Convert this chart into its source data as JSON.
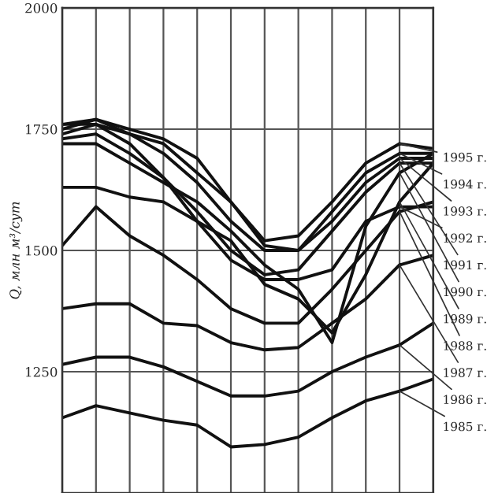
{
  "chart_data": {
    "type": "line",
    "ylabel": "Q, млн м³/сут",
    "categories": [
      null,
      null,
      null,
      null,
      null,
      null,
      null,
      null,
      null,
      null,
      null,
      null
    ],
    "ylim": [
      1000,
      2000
    ],
    "yticks": [
      1250,
      1500,
      1750,
      2000
    ],
    "grid": true,
    "tick_labels": "y",
    "marker": "none",
    "line_style": "solid",
    "series": [
      {
        "name": "1995 г.",
        "color": "#111111",
        "values": [
          1750,
          1770,
          1750,
          1730,
          1690,
          1600,
          1520,
          1530,
          1600,
          1680,
          1720,
          1710
        ]
      },
      {
        "name": "1994 г.",
        "color": "#111111",
        "values": [
          1760,
          1760,
          1740,
          1720,
          1660,
          1600,
          1510,
          1500,
          1580,
          1660,
          1700,
          1700
        ]
      },
      {
        "name": "1993 г.",
        "color": "#111111",
        "values": [
          1760,
          1770,
          1740,
          1700,
          1640,
          1560,
          1500,
          1500,
          1560,
          1640,
          1690,
          1690
        ]
      },
      {
        "name": "1992 г.",
        "color": "#111111",
        "values": [
          1740,
          1760,
          1720,
          1650,
          1560,
          1480,
          1440,
          1440,
          1460,
          1560,
          1590,
          1590
        ]
      },
      {
        "name": "1991 г.",
        "color": "#111111",
        "values": [
          1730,
          1740,
          1700,
          1650,
          1580,
          1500,
          1450,
          1460,
          1540,
          1620,
          1680,
          1680
        ]
      },
      {
        "name": "1990 г.",
        "color": "#111111",
        "values": [
          1720,
          1720,
          1680,
          1640,
          1600,
          1540,
          1470,
          1420,
          1310,
          1550,
          1660,
          1700
        ]
      },
      {
        "name": "1989 г.",
        "color": "#111111",
        "values": [
          1630,
          1630,
          1610,
          1600,
          1560,
          1520,
          1430,
          1400,
          1330,
          1450,
          1600,
          1680
        ]
      },
      {
        "name": "1988 г.",
        "color": "#111111",
        "values": [
          1510,
          1590,
          1530,
          1490,
          1440,
          1380,
          1350,
          1350,
          1420,
          1500,
          1580,
          1600
        ]
      },
      {
        "name": "1987 г.",
        "color": "#111111",
        "values": [
          1380,
          1390,
          1390,
          1350,
          1345,
          1310,
          1295,
          1300,
          1350,
          1400,
          1470,
          1490
        ]
      },
      {
        "name": "1986 г.",
        "color": "#111111",
        "values": [
          1265,
          1280,
          1280,
          1260,
          1230,
          1200,
          1200,
          1210,
          1250,
          1280,
          1305,
          1350
        ]
      },
      {
        "name": "1985 г.",
        "color": "#111111",
        "values": [
          1155,
          1180,
          1165,
          1150,
          1140,
          1095,
          1100,
          1115,
          1155,
          1190,
          1210,
          1235
        ]
      }
    ]
  }
}
